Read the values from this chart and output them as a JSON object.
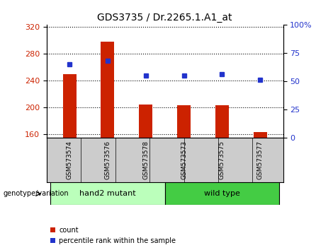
{
  "title": "GDS3735 / Dr.2265.1.A1_at",
  "categories": [
    "GSM573574",
    "GSM573576",
    "GSM573578",
    "GSM573573",
    "GSM573575",
    "GSM573577"
  ],
  "counts": [
    250,
    298,
    204,
    203,
    203,
    163
  ],
  "percentiles": [
    65,
    68,
    55,
    55,
    56,
    51
  ],
  "ylim_left": [
    155,
    323
  ],
  "ylim_right": [
    0,
    100
  ],
  "yticks_left": [
    160,
    200,
    240,
    280,
    320
  ],
  "yticks_right": [
    0,
    25,
    50,
    75,
    100
  ],
  "ytick_right_labels": [
    "0",
    "25",
    "50",
    "75",
    "100%"
  ],
  "bar_color": "#cc2200",
  "dot_color": "#2233cc",
  "bg_plot": "#ffffff",
  "bg_label": "#cccccc",
  "group1_label": "hand2 mutant",
  "group1_color": "#bbffbb",
  "group2_label": "wild type",
  "group2_color": "#44cc44",
  "genotype_label": "genotype/variation",
  "legend_count": "count",
  "legend_pct": "percentile rank within the sample",
  "bar_width": 0.35
}
